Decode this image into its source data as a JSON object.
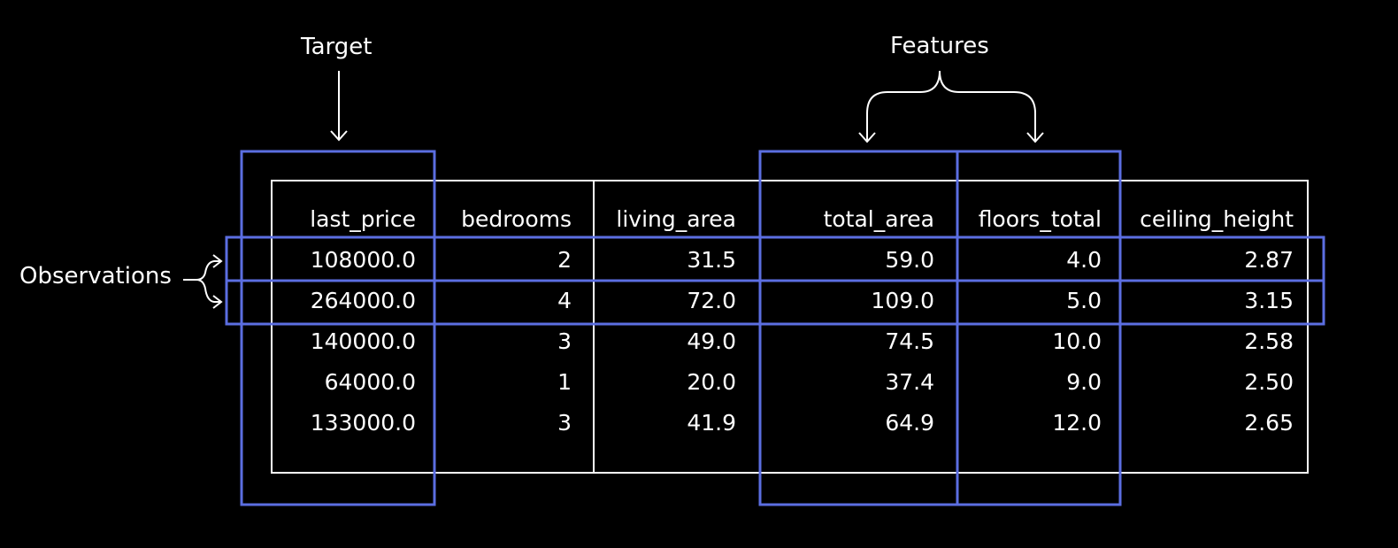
{
  "annotations": {
    "target": "Target",
    "features": "Features",
    "observations": "Observations"
  },
  "table": {
    "columns": [
      "last_price",
      "bedrooms",
      "living_area",
      "total_area",
      "floors_total",
      "ceiling_height"
    ],
    "rows": [
      [
        "108000.0",
        "2",
        "31.5",
        "59.0",
        "4.0",
        "2.87"
      ],
      [
        "264000.0",
        "4",
        "72.0",
        "109.0",
        "5.0",
        "3.15"
      ],
      [
        "140000.0",
        "3",
        "49.0",
        "74.5",
        "10.0",
        "2.58"
      ],
      [
        "64000.0",
        "1",
        "20.0",
        "37.4",
        "9.0",
        "2.50"
      ],
      [
        "133000.0",
        "3",
        "41.9",
        "64.9",
        "12.0",
        "2.65"
      ]
    ]
  },
  "colors": {
    "background": "#000000",
    "text": "#ffffff",
    "highlight": "#5b6ee1"
  }
}
